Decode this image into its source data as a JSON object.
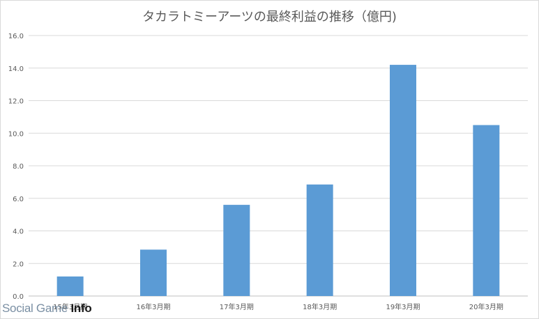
{
  "chart_data": {
    "type": "bar",
    "title": "タカラトミーアーツの最終利益の推移（億円)",
    "categories": [
      "15年3月期",
      "16年3月期",
      "17年3月期",
      "18年3月期",
      "19年3月期",
      "20年3月期"
    ],
    "values": [
      1.2,
      2.85,
      5.6,
      6.85,
      14.2,
      10.5
    ],
    "yticks": [
      "0.0",
      "2.0",
      "4.0",
      "6.0",
      "8.0",
      "10.0",
      "12.0",
      "14.0",
      "16.0"
    ],
    "ylim": [
      0,
      16
    ],
    "grid": true,
    "bar_color": "#5b9bd5"
  },
  "watermark": {
    "brand_prefix": "Social Game ",
    "brand_suffix": "Info"
  }
}
